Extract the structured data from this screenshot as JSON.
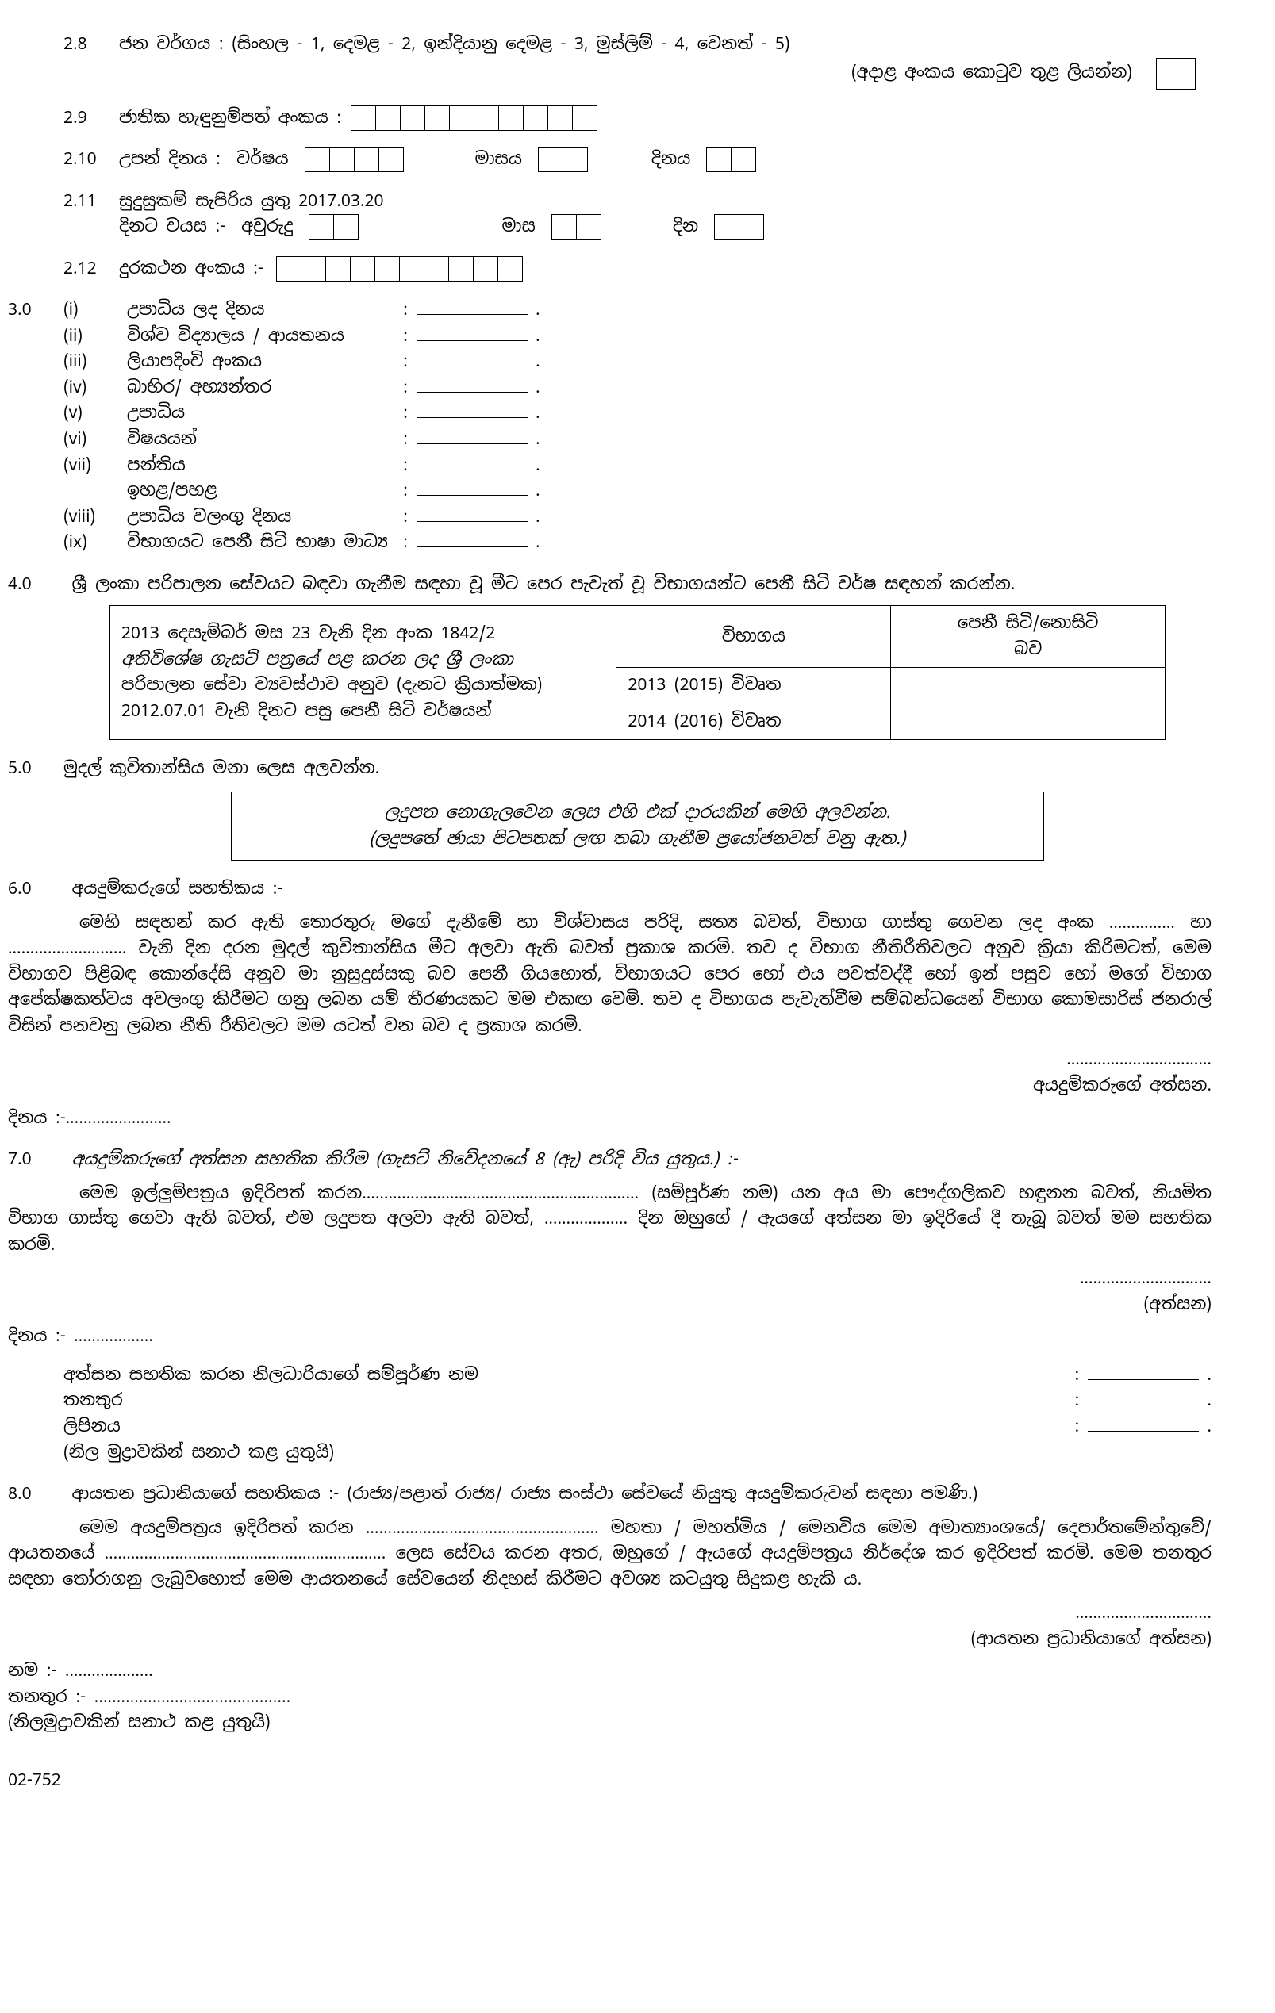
{
  "q28": {
    "num": "2.8",
    "label": "ජන වර්ගය : (සිංහල - 1, දෙමළ - 2, ඉන්දියානු දෙමළ - 3, මුස්ලිම් - 4, වෙනත් - 5)",
    "sub": "(අදාළ අංකය කොටුව තුළ ලියන්න)"
  },
  "q29": {
    "num": "2.9",
    "label": "ජාතික හැඳුනුම්පත් අංකය :"
  },
  "q210": {
    "num": "2.10",
    "label": "උපන් දිනය :",
    "year": "වර්ෂය",
    "month": "මාසය",
    "day": "දිනය"
  },
  "q211": {
    "num": "2.11",
    "line1": "සුදුසුකම් සැපිරිය යුතු 2017.03.20",
    "line2": "දිනට වයස :-",
    "years": "අවුරුදු",
    "months": "මාස",
    "days": "දින"
  },
  "q212": {
    "num": "2.12",
    "label": "දුරකථන අංකය :-"
  },
  "q30": {
    "num": "3.0",
    "items": [
      {
        "roman": "(i)",
        "label": "උපාධිය ලද දිනය"
      },
      {
        "roman": "(ii)",
        "label": "විශ්ව විද්‍යාලය / ආයතනය"
      },
      {
        "roman": "(iii)",
        "label": "ලියාපදිංචි අංකය"
      },
      {
        "roman": "(iv)",
        "label": "බාහිර/ අභ්‍යන්තර"
      },
      {
        "roman": "(v)",
        "label": "උපාධිය"
      },
      {
        "roman": "(vi)",
        "label": "විෂයයන්"
      },
      {
        "roman": "(vii)",
        "label": "පන්තිය"
      },
      {
        "roman": "",
        "label": "ඉහළ/පහළ"
      },
      {
        "roman": "(viii)",
        "label": "උපාධිය වලංගු දිනය"
      },
      {
        "roman": "(ix)",
        "label": "විභාගයට පෙනී සිටි භාෂා මාධ්‍ය"
      }
    ]
  },
  "q40": {
    "num": "4.0",
    "text": "ශ්‍රී ලංකා පරිපාලන සේවයට බඳවා ගැනීම සඳහා වූ මීට පෙර පැවැත් වූ විභාගයන්ට පෙනී සිටි වර්ෂ සඳහන් කරන්න."
  },
  "table40": {
    "col1_l1": "2013 දෙසැම්බර් මස 23 වැනි දින අංක 1842/2",
    "col1_l2": "අතිවිශේෂ ගැසට් පත්‍රයේ පළ කරන ලද ශ්‍රී ලංකා",
    "col1_l3": "පරිපාලන සේවා ව්‍යවස්ථාව අනුව (දැනට ක්‍රියාත්මක)",
    "col1_l4": "2012.07.01 වැනි දිනට පසු පෙනී සිටි වර්ෂයන්",
    "h2": "විභාගය",
    "h3_l1": "පෙනී සිටි/නොසිටි",
    "h3_l2": "බව",
    "r1": "2013 (2015) විවෘත",
    "r2": "2014 (2016) විවෘත"
  },
  "q50": {
    "num": "5.0",
    "label": "මුදල් කුවිතාන්සිය මනා ලෙස අලවන්න.",
    "box_l1": "ලදුපත නොගැලවෙන ලෙස එහි එක් දාරයකින් මෙහි අලවන්න.",
    "box_l2": "(ලදුපතේ ඡායා පිටපතක් ලඟ තබා ගැනීම ප්‍රයෝජනවත් වනු ඇත.)"
  },
  "q60": {
    "num": "6.0",
    "title": "අයදුම්කරුගේ සහතිකය :-",
    "body": "මෙහි සඳහන් කර ඇති තොරතුරු මගේ දැනීමේ හා විශ්වාසය පරිදි, සත්‍ය බවත්, විභාග ගාස්තු ගෙවන ලද අංක …………… හා ……………………… වැනි දින දරන මුදල් කුවිතාන්සිය මීට අලවා ඇති බවත් ප්‍රකාශ කරමි. තව ද විභාග නීතිරීතිවලට අනුව ක්‍රියා කිරීමටත්, මෙම විභාගව පිළිබඳ කොන්දේසි අනුව මා නුසුදුස්සකු බව පෙනී ගියහොත්, විභාගයට පෙර හෝ එය පවත්වද්දී හෝ ඉන් පසුව හෝ මගේ විභාග අපේක්ෂකත්වය අවලංගු කිරීමට ගනු ලබන යම් තීරණයකට මම එකඟ වෙමි. තව ද විභාගය පැවැත්වීම සම්බන්ධයෙන් විභාග කොමසාරිස් ජනරාල් විසින් පනවනු ලබන නීති රීතිවලට මම යටත් වන බව ද ප්‍රකාශ කරමි.",
    "sig_dots": "……………………………",
    "sig_label": "අයදුම්කරුගේ අත්සන.",
    "date": "දිනය :-……………………"
  },
  "q70": {
    "num": "7.0",
    "title": "අයදුම්කරුගේ අත්සන සහතික කිරීම (ගැසට් නිවේදනයේ 8 (ඇ) පරිදි විය යුතුය.) :-",
    "body1": "මෙම ඉල්ලුම්පත්‍රය ඉදිරිපත් කරන……………………………………………………… (සම්පූර්ණ නම) යන අය මා පෞද්ගලිකව හඳුනන බවත්, නියමිත විභාග ගාස්තු ගෙවා ඇති බවත්, එම ලදුපත අලවා ඇති බවත්, ………………. දින ඔහුගේ / ඇයගේ අත්සන මා ඉදිරියේ දී තැබූ බවත් මම සහතික කරමි.",
    "sig_dots": "…………………………",
    "sig_label": "(අත්සන)",
    "date": "දිනය :- ………………",
    "lines": [
      "අත්සන සහතික කරන නිලධාරියාගේ සම්පූර්ණ නම",
      "තනතුර",
      "ලිපිනය"
    ],
    "seal": "(නිල මුද්‍රාවකින් සනාථ කළ යුතුයි)"
  },
  "q80": {
    "num": "8.0",
    "title": "ආයතන ප්‍රධානියාගේ සහතිකය :- (රාජ්‍ය/පළාත් රාජ්‍ය/ රාජ්‍ය සංස්ථා සේවයේ නියුතු අයදුම්කරුවන් සඳහා පමණි.)",
    "body": "මෙම අයදුම්පත්‍රය ඉදිරිපත් කරන ……………….………………….………… මහතා / මහත්මිය / මෙනවිය මෙම අමාත්‍යාංශයේ/ දෙපාර්තමේන්තුවේ/ ආයතනයේ …………….…………………….………………….. ලෙස සේවය කරන අතර, ඔහුගේ / ඇයගේ අයදුම්පත්‍රය නිර්දේශ කර ඉදිරිපත් කරමි. මෙම තනතුර සඳහා තෝරාගනු ලැබුවහොත් මෙම ආයතනයේ සේවයෙන්  නිදහස් කිරීමට අවශ්‍ය කටයුතු සිදුකළ හැකි ය.",
    "sig_dots": "………………………….",
    "sig_label": "(ආයතන ප්‍රධානියාගේ අත්සන)",
    "name": "නම  :- ………………..",
    "post": "තනතුර :- ............................................",
    "seal": "(නිලමුද්‍රාවකින් සනාථ කළ යුතුයි)"
  },
  "footer": "02-752"
}
